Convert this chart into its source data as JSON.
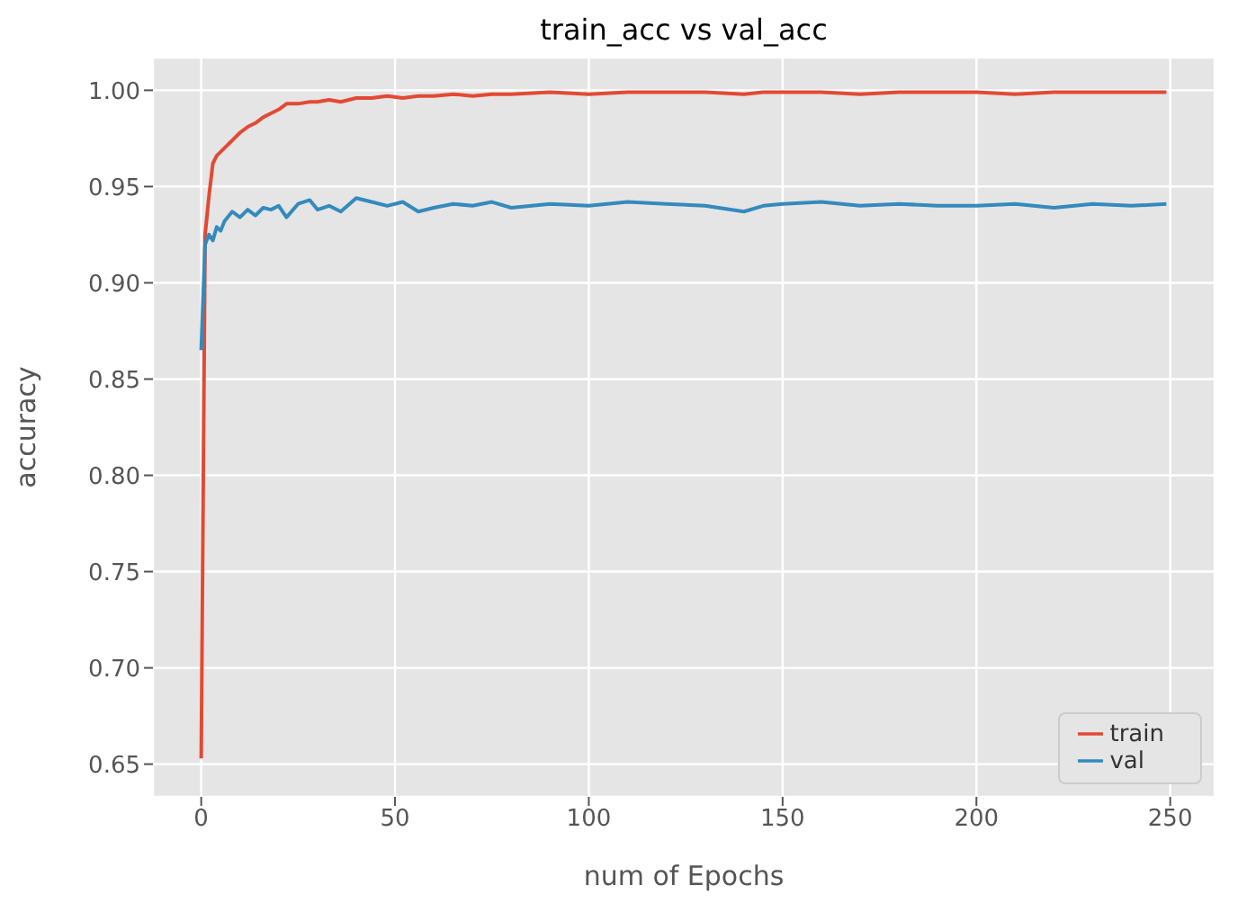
{
  "chart_data": {
    "type": "line",
    "title": "train_acc vs val_acc",
    "xlabel": "num of Epochs",
    "ylabel": "accuracy",
    "x": [
      0,
      1,
      2,
      3,
      4,
      5,
      6,
      8,
      10,
      12,
      14,
      16,
      18,
      20,
      22,
      25,
      28,
      30,
      33,
      36,
      40,
      44,
      48,
      52,
      56,
      60,
      65,
      70,
      75,
      80,
      90,
      100,
      110,
      120,
      130,
      140,
      145,
      150,
      160,
      170,
      180,
      190,
      200,
      210,
      220,
      230,
      240,
      249
    ],
    "series": [
      {
        "name": "train",
        "color": "#e24a33",
        "values": [
          0.653,
          0.925,
          0.945,
          0.962,
          0.966,
          0.968,
          0.97,
          0.974,
          0.978,
          0.981,
          0.983,
          0.986,
          0.988,
          0.99,
          0.993,
          0.993,
          0.994,
          0.994,
          0.995,
          0.994,
          0.996,
          0.996,
          0.997,
          0.996,
          0.997,
          0.997,
          0.998,
          0.997,
          0.998,
          0.998,
          0.999,
          0.998,
          0.999,
          0.999,
          0.999,
          0.998,
          0.999,
          0.999,
          0.999,
          0.998,
          0.999,
          0.999,
          0.999,
          0.998,
          0.999,
          0.999,
          0.999,
          0.999
        ]
      },
      {
        "name": "val",
        "color": "#348abd",
        "values": [
          0.865,
          0.92,
          0.925,
          0.922,
          0.929,
          0.927,
          0.932,
          0.937,
          0.934,
          0.938,
          0.935,
          0.939,
          0.938,
          0.94,
          0.934,
          0.941,
          0.943,
          0.938,
          0.94,
          0.937,
          0.944,
          0.942,
          0.94,
          0.942,
          0.937,
          0.939,
          0.941,
          0.94,
          0.942,
          0.939,
          0.941,
          0.94,
          0.942,
          0.941,
          0.94,
          0.937,
          0.94,
          0.941,
          0.942,
          0.94,
          0.941,
          0.94,
          0.94,
          0.941,
          0.939,
          0.941,
          0.94,
          0.941
        ]
      }
    ],
    "xlim": [
      -12.45,
      261.45
    ],
    "xticks": [
      0,
      50,
      100,
      150,
      200,
      250
    ],
    "ylim": [
      0.633,
      1.017
    ],
    "yticks": [
      {
        "value": 0.65,
        "label": "0.65"
      },
      {
        "value": 0.7,
        "label": "0.70"
      },
      {
        "value": 0.75,
        "label": "0.75"
      },
      {
        "value": 0.8,
        "label": "0.80"
      },
      {
        "value": 0.85,
        "label": "0.85"
      },
      {
        "value": 0.9,
        "label": "0.90"
      },
      {
        "value": 0.95,
        "label": "0.95"
      },
      {
        "value": 1,
        "label": "1.00"
      }
    ],
    "grid": true,
    "legend": "bottom right",
    "marker": "none",
    "line_style": "solid"
  }
}
